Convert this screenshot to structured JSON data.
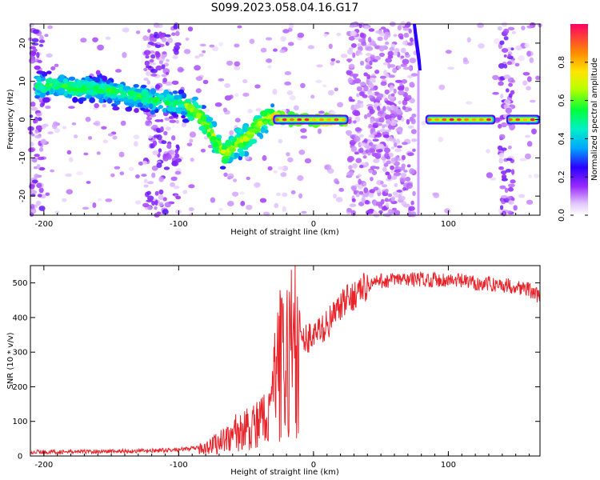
{
  "figure": {
    "title": "S099.2023.058.04.16.G17"
  },
  "chart_data": [
    {
      "type": "heatmap",
      "xlabel": "Height of straight line (km)",
      "ylabel": "Frequency (Hz)",
      "xlim": [
        -210,
        168
      ],
      "ylim": [
        -25,
        25
      ],
      "xticks": [
        -200,
        -100,
        0,
        100
      ],
      "yticks": [
        -20,
        -10,
        0,
        10,
        20
      ],
      "colorbar": {
        "label": "Normalized spectral amplitude",
        "range": [
          0,
          1
        ],
        "ticks": [
          0.0,
          0.2,
          0.4,
          0.6,
          0.8
        ]
      },
      "ridge": {
        "x": [
          -205,
          -190,
          -175,
          -160,
          -145,
          -130,
          -118,
          -105,
          -95,
          -88,
          -80,
          -75,
          -70,
          -65,
          -60,
          -55,
          -50,
          -45,
          -40,
          -35,
          -30,
          -25,
          -20,
          -15,
          -10,
          0,
          10,
          25
        ],
        "y": [
          9,
          9,
          8,
          8,
          7,
          6,
          5,
          4.5,
          4,
          2,
          -1,
          -4,
          -7,
          -9,
          -7,
          -6,
          -5,
          -3,
          -1,
          0.5,
          0.5,
          0.5,
          0,
          0,
          0,
          0,
          0,
          0
        ]
      },
      "noise_bands": [
        [
          -210,
          -200
        ],
        [
          -125,
          -100
        ],
        [
          26,
          75
        ],
        [
          138,
          148
        ]
      ],
      "vertical_streak_x": 76,
      "stable_segments": [
        {
          "x": [
            -30,
            26
          ],
          "y": 0,
          "peak": 1.0
        },
        {
          "x": [
            83,
            135
          ],
          "y": 0,
          "peak": 1.0
        },
        {
          "x": [
            143,
            168
          ],
          "y": 0,
          "peak": 1.0
        }
      ]
    },
    {
      "type": "line",
      "xlabel": "Height of straight line (km)",
      "ylabel": "SNR (10 * v/v)",
      "xlim": [
        -210,
        168
      ],
      "ylim": [
        0,
        550
      ],
      "xticks": [
        -200,
        -100,
        0,
        100
      ],
      "yticks": [
        0,
        100,
        200,
        300,
        400,
        500
      ],
      "color": "#e8232a",
      "series": [
        {
          "x": [
            -210,
            -200,
            -180,
            -160,
            -140,
            -120,
            -100,
            -90,
            -80,
            -75,
            -70,
            -65,
            -60,
            -55,
            -50,
            -45,
            -40,
            -35,
            -32,
            -30,
            -28,
            -25,
            -22,
            -20,
            -17,
            -15,
            -12,
            -10,
            -7,
            -5,
            0,
            5,
            10,
            15,
            20,
            25,
            30,
            35,
            40,
            45,
            50,
            60,
            70,
            80,
            90,
            100,
            110,
            120,
            130,
            140,
            150,
            160,
            168
          ],
          "y": [
            12,
            12,
            12,
            13,
            14,
            15,
            18,
            22,
            25,
            32,
            40,
            52,
            65,
            70,
            75,
            80,
            90,
            110,
            150,
            190,
            230,
            260,
            280,
            295,
            310,
            315,
            322,
            328,
            335,
            340,
            350,
            360,
            380,
            405,
            430,
            450,
            465,
            480,
            492,
            500,
            505,
            508,
            510,
            510,
            510,
            508,
            505,
            500,
            497,
            494,
            490,
            480,
            460
          ]
        }
      ]
    }
  ]
}
